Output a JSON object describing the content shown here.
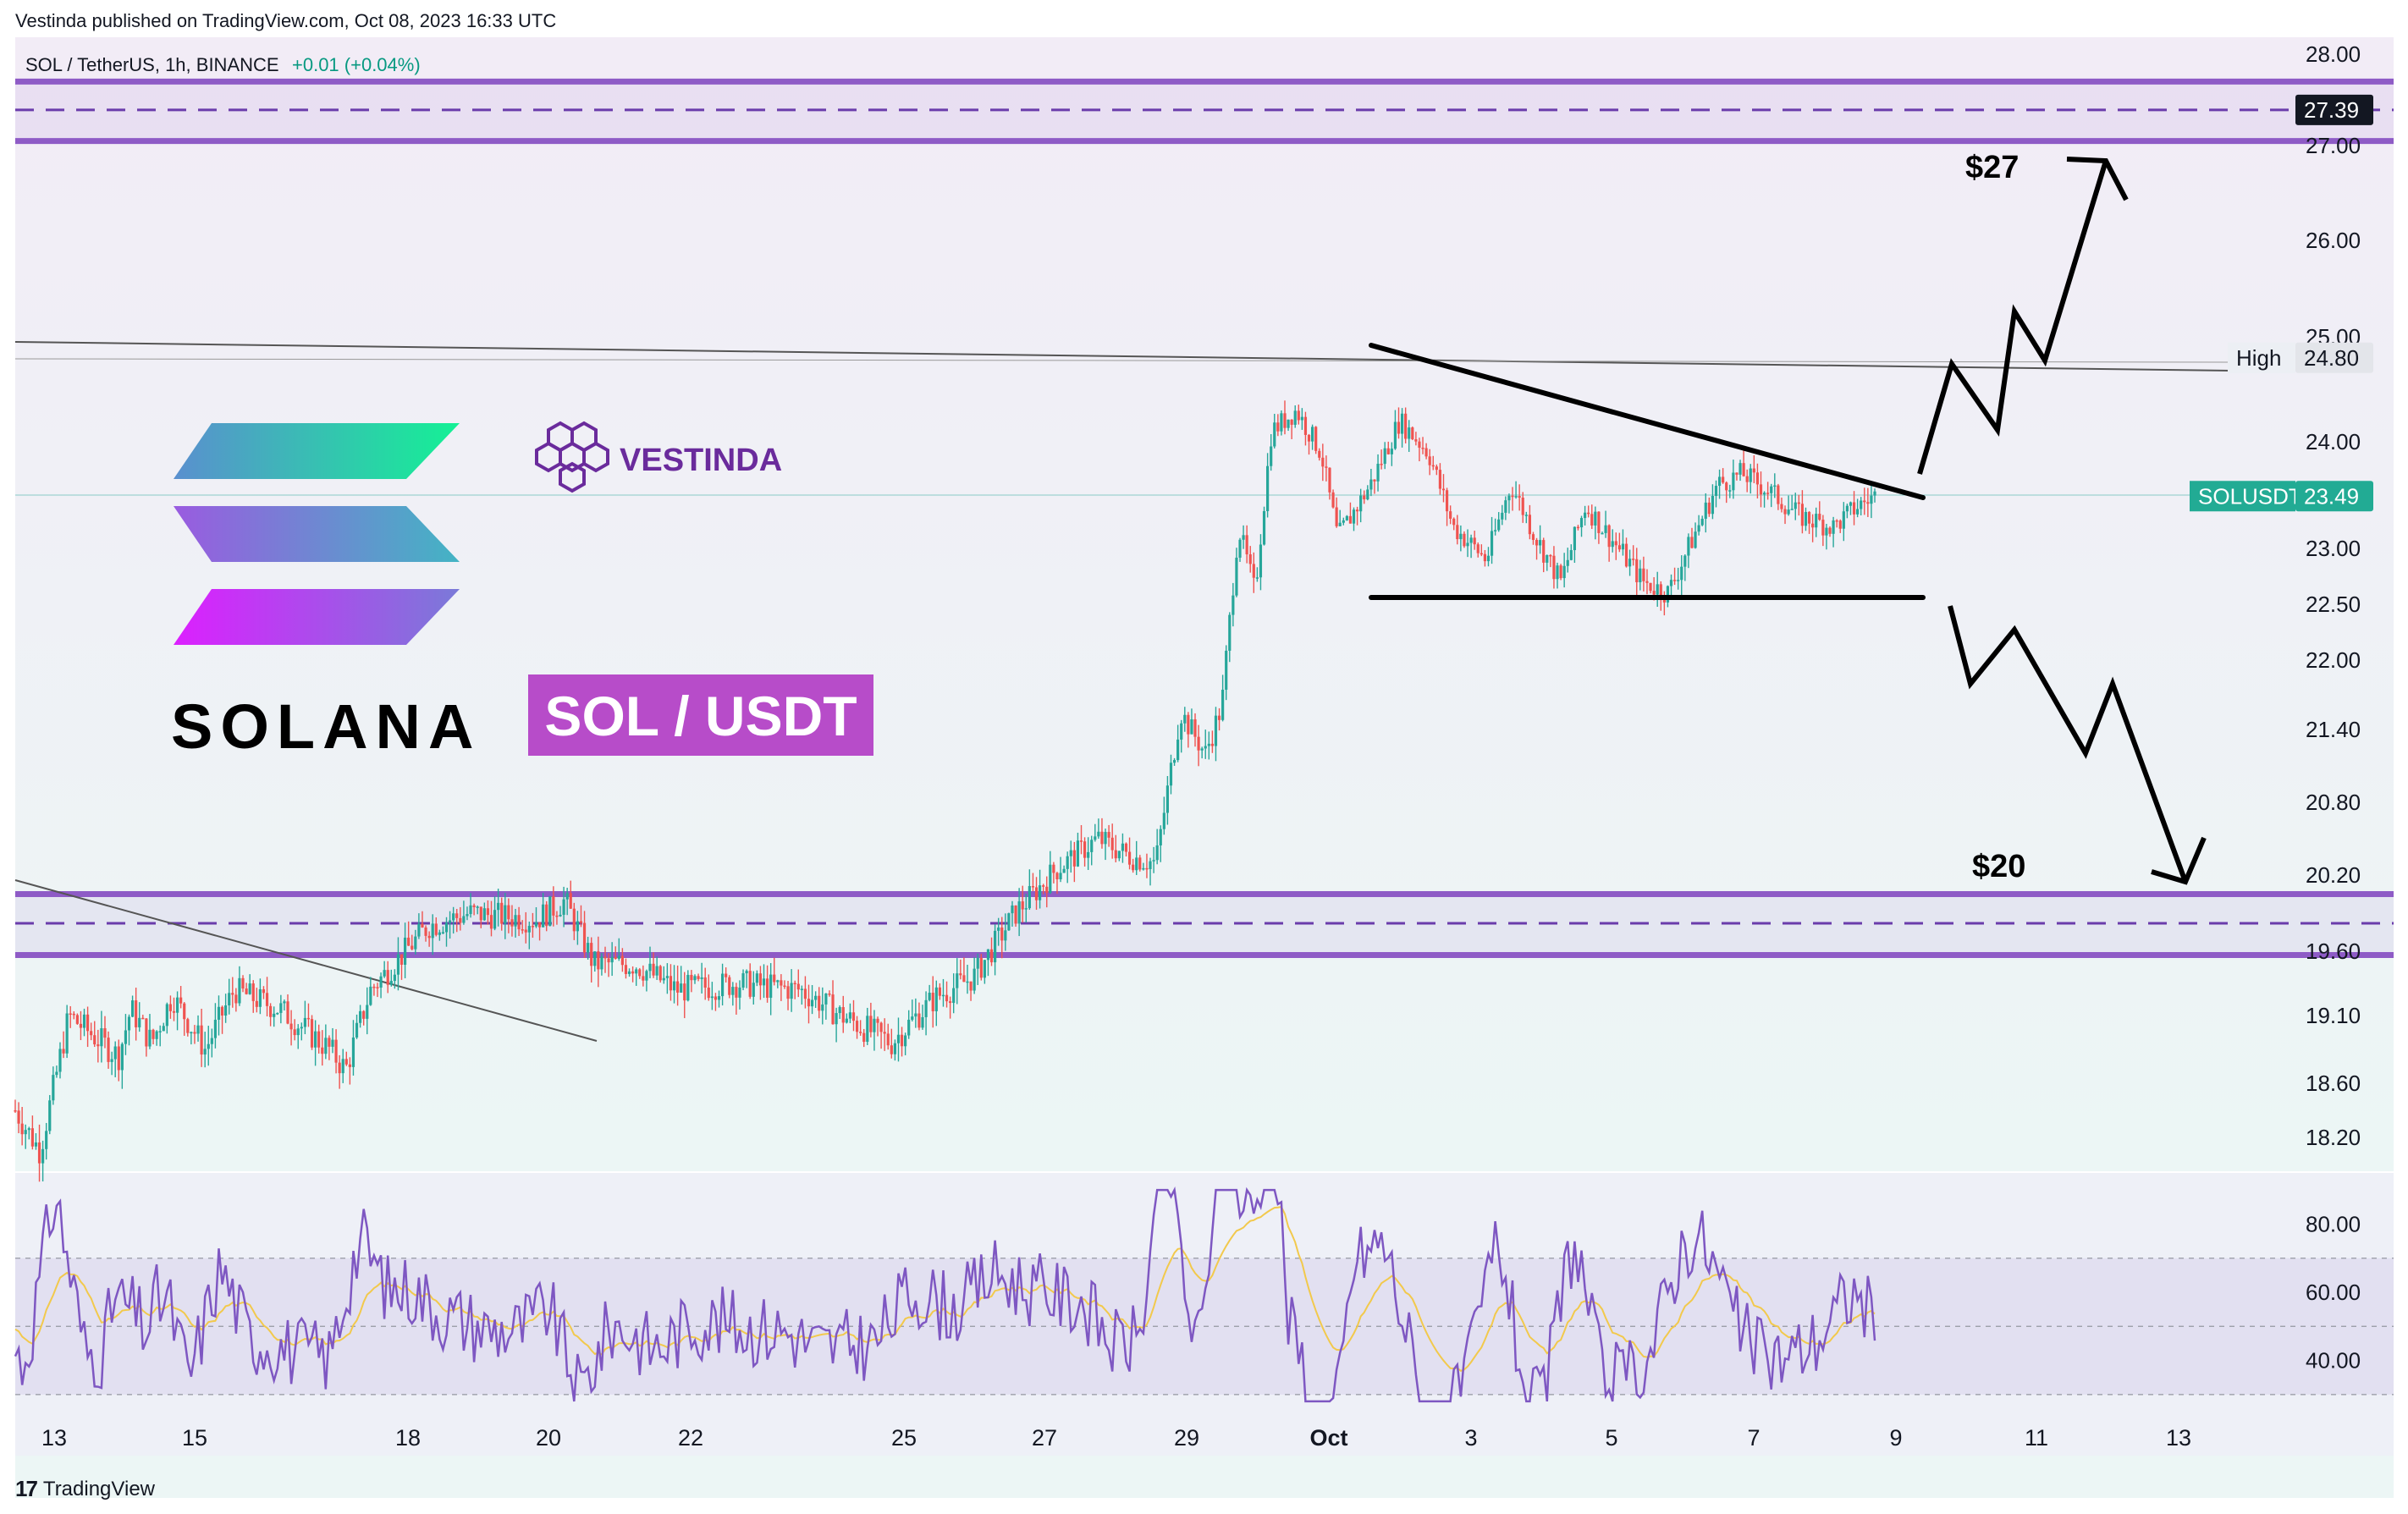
{
  "header": {
    "published": "Vestinda published on TradingView.com, Oct 08, 2023 16:33 UTC"
  },
  "chart_data": {
    "type": "candlestick",
    "symbol": "SOL / TetherUS, 1h, BINANCE",
    "change": "+0.01 (+0.04%)",
    "price_axis": {
      "range": [
        17.95,
        28.15
      ],
      "ticks": [
        "28.00",
        "27.00",
        "26.00",
        "25.00",
        "24.00",
        "23.00",
        "22.50",
        "22.00",
        "21.40",
        "20.80",
        "20.20",
        "19.60",
        "19.10",
        "18.60",
        "18.20"
      ]
    },
    "time_axis": {
      "labels": [
        "13",
        "15",
        "18",
        "20",
        "22",
        "25",
        "27",
        "29",
        "Oct",
        "3",
        "5",
        "7",
        "9",
        "11",
        "13"
      ]
    },
    "price_labels": [
      {
        "text": "27.39",
        "price": 27.39,
        "style": "dark"
      },
      {
        "text": "24.80",
        "price": 24.8,
        "style": "light",
        "tag": "High"
      },
      {
        "text": "23.49",
        "price": 23.49,
        "style": "green",
        "tag": "SOLUSDT"
      }
    ],
    "zones": [
      {
        "top": 27.7,
        "mid": 27.39,
        "bottom": 27.05
      },
      {
        "top": 20.05,
        "mid": 19.82,
        "bottom": 19.57
      }
    ],
    "annotations": {
      "upper_target": "$27",
      "lower_target": "$20",
      "title_badge": "SOL / USDT",
      "brand": "SOLANA",
      "vestinda": "VESTINDA"
    },
    "candles": {
      "up_color": "#26a69a",
      "down_color": "#ef5350",
      "path": [
        {
          "t": 0,
          "p": 18.4
        },
        {
          "t": 60,
          "p": 18.1
        },
        {
          "t": 130,
          "p": 19.1
        },
        {
          "t": 250,
          "p": 18.8
        },
        {
          "t": 280,
          "p": 19.15
        },
        {
          "t": 330,
          "p": 18.9
        },
        {
          "t": 380,
          "p": 19.25
        },
        {
          "t": 460,
          "p": 18.85
        },
        {
          "t": 530,
          "p": 19.3
        },
        {
          "t": 640,
          "p": 19.15
        },
        {
          "t": 760,
          "p": 18.85
        },
        {
          "t": 800,
          "p": 18.7
        },
        {
          "t": 860,
          "p": 19.3
        },
        {
          "t": 1000,
          "p": 19.8
        },
        {
          "t": 1100,
          "p": 19.9
        },
        {
          "t": 1260,
          "p": 19.85
        },
        {
          "t": 1330,
          "p": 20.0
        },
        {
          "t": 1400,
          "p": 19.5
        },
        {
          "t": 1500,
          "p": 19.5
        },
        {
          "t": 1600,
          "p": 19.3
        },
        {
          "t": 1750,
          "p": 19.35
        },
        {
          "t": 1900,
          "p": 19.3
        },
        {
          "t": 2000,
          "p": 19.1
        },
        {
          "t": 2120,
          "p": 18.9
        },
        {
          "t": 2230,
          "p": 19.25
        },
        {
          "t": 2320,
          "p": 19.4
        },
        {
          "t": 2420,
          "p": 19.9
        },
        {
          "t": 2520,
          "p": 20.25
        },
        {
          "t": 2620,
          "p": 20.5
        },
        {
          "t": 2700,
          "p": 20.35
        },
        {
          "t": 2760,
          "p": 20.3
        },
        {
          "t": 2820,
          "p": 21.55
        },
        {
          "t": 2880,
          "p": 21.2
        },
        {
          "t": 2920,
          "p": 21.6
        },
        {
          "t": 2960,
          "p": 23.2
        },
        {
          "t": 3000,
          "p": 22.6
        },
        {
          "t": 3040,
          "p": 24.1
        },
        {
          "t": 3100,
          "p": 24.3
        },
        {
          "t": 3160,
          "p": 23.9
        },
        {
          "t": 3200,
          "p": 23.1
        },
        {
          "t": 3280,
          "p": 23.6
        },
        {
          "t": 3350,
          "p": 24.2
        },
        {
          "t": 3420,
          "p": 23.9
        },
        {
          "t": 3480,
          "p": 23.2
        },
        {
          "t": 3560,
          "p": 22.9
        },
        {
          "t": 3620,
          "p": 23.6
        },
        {
          "t": 3680,
          "p": 23.1
        },
        {
          "t": 3740,
          "p": 22.7
        },
        {
          "t": 3800,
          "p": 23.4
        },
        {
          "t": 3860,
          "p": 23.1
        },
        {
          "t": 3940,
          "p": 22.7
        },
        {
          "t": 4000,
          "p": 22.6
        },
        {
          "t": 4060,
          "p": 23.1
        },
        {
          "t": 4120,
          "p": 23.6
        },
        {
          "t": 4180,
          "p": 23.7
        },
        {
          "t": 4240,
          "p": 23.55
        },
        {
          "t": 4320,
          "p": 23.3
        },
        {
          "t": 4400,
          "p": 23.2
        },
        {
          "t": 4460,
          "p": 23.4
        },
        {
          "t": 4500,
          "p": 23.49
        }
      ]
    },
    "rsi": {
      "ticks": [
        "80.00",
        "60.00",
        "40.00"
      ],
      "range": [
        25,
        95
      ],
      "bands": [
        70,
        50,
        30
      ]
    }
  },
  "footer": {
    "brand": "TradingView"
  }
}
